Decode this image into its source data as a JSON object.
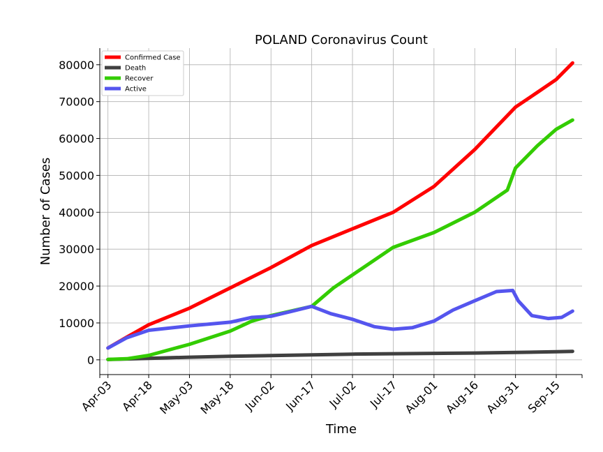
{
  "chart_data": {
    "type": "line",
    "title": "POLAND Coronavirus Count",
    "xlabel": "Time",
    "ylabel": "Number of Cases",
    "x_range": [
      "2020-04-03",
      "2020-09-21"
    ],
    "ylim": [
      -4000,
      84500
    ],
    "grid": true,
    "legend_position": "top-left",
    "x_ticks": [
      "Apr-03",
      "Apr-18",
      "May-03",
      "May-18",
      "Jun-02",
      "Jun-17",
      "Jul-02",
      "Jul-17",
      "Aug-01",
      "Aug-16",
      "Aug-31",
      "Sep-15"
    ],
    "x_tick_dates": [
      "2020-04-03",
      "2020-04-18",
      "2020-05-03",
      "2020-05-18",
      "2020-06-02",
      "2020-06-17",
      "2020-07-02",
      "2020-07-17",
      "2020-08-01",
      "2020-08-16",
      "2020-08-31",
      "2020-09-15"
    ],
    "y_ticks": [
      0,
      10000,
      20000,
      30000,
      40000,
      50000,
      60000,
      70000,
      80000
    ],
    "series": [
      {
        "name": "Confirmed Case",
        "color": "#ff0000",
        "x": [
          "2020-04-03",
          "2020-04-10",
          "2020-04-18",
          "2020-05-03",
          "2020-05-18",
          "2020-06-02",
          "2020-06-17",
          "2020-07-02",
          "2020-07-17",
          "2020-08-01",
          "2020-08-16",
          "2020-08-31",
          "2020-09-08",
          "2020-09-15",
          "2020-09-21"
        ],
        "values": [
          3200,
          6200,
          9500,
          14000,
          19500,
          25000,
          31000,
          35500,
          40000,
          47000,
          57000,
          68500,
          72500,
          76000,
          80500
        ]
      },
      {
        "name": "Death",
        "color": "#404040",
        "x": [
          "2020-04-03",
          "2020-04-18",
          "2020-05-03",
          "2020-05-18",
          "2020-06-02",
          "2020-06-17",
          "2020-07-02",
          "2020-07-17",
          "2020-08-01",
          "2020-08-16",
          "2020-08-31",
          "2020-09-15",
          "2020-09-21"
        ],
        "values": [
          80,
          400,
          700,
          950,
          1150,
          1350,
          1550,
          1650,
          1750,
          1850,
          2000,
          2200,
          2300
        ]
      },
      {
        "name": "Recover",
        "color": "#33cc00",
        "x": [
          "2020-04-03",
          "2020-04-10",
          "2020-04-18",
          "2020-05-03",
          "2020-05-18",
          "2020-05-26",
          "2020-06-02",
          "2020-06-17",
          "2020-06-25",
          "2020-07-02",
          "2020-07-17",
          "2020-08-01",
          "2020-08-16",
          "2020-08-28",
          "2020-08-31",
          "2020-09-08",
          "2020-09-15",
          "2020-09-21"
        ],
        "values": [
          100,
          300,
          1200,
          4200,
          7800,
          10500,
          12000,
          14500,
          19500,
          23000,
          30500,
          34500,
          40000,
          46000,
          52000,
          58000,
          62500,
          65000
        ]
      },
      {
        "name": "Active",
        "color": "#5555ee",
        "x": [
          "2020-04-03",
          "2020-04-10",
          "2020-04-18",
          "2020-05-03",
          "2020-05-18",
          "2020-05-26",
          "2020-06-02",
          "2020-06-10",
          "2020-06-17",
          "2020-06-24",
          "2020-07-02",
          "2020-07-10",
          "2020-07-17",
          "2020-07-24",
          "2020-08-01",
          "2020-08-08",
          "2020-08-16",
          "2020-08-24",
          "2020-08-30",
          "2020-09-01",
          "2020-09-06",
          "2020-09-12",
          "2020-09-17",
          "2020-09-21"
        ],
        "values": [
          3200,
          6000,
          8000,
          9200,
          10200,
          11500,
          11800,
          13200,
          14500,
          12500,
          11000,
          9000,
          8300,
          8700,
          10500,
          13500,
          16000,
          18500,
          18800,
          16000,
          12000,
          11200,
          11500,
          13200
        ]
      }
    ]
  }
}
